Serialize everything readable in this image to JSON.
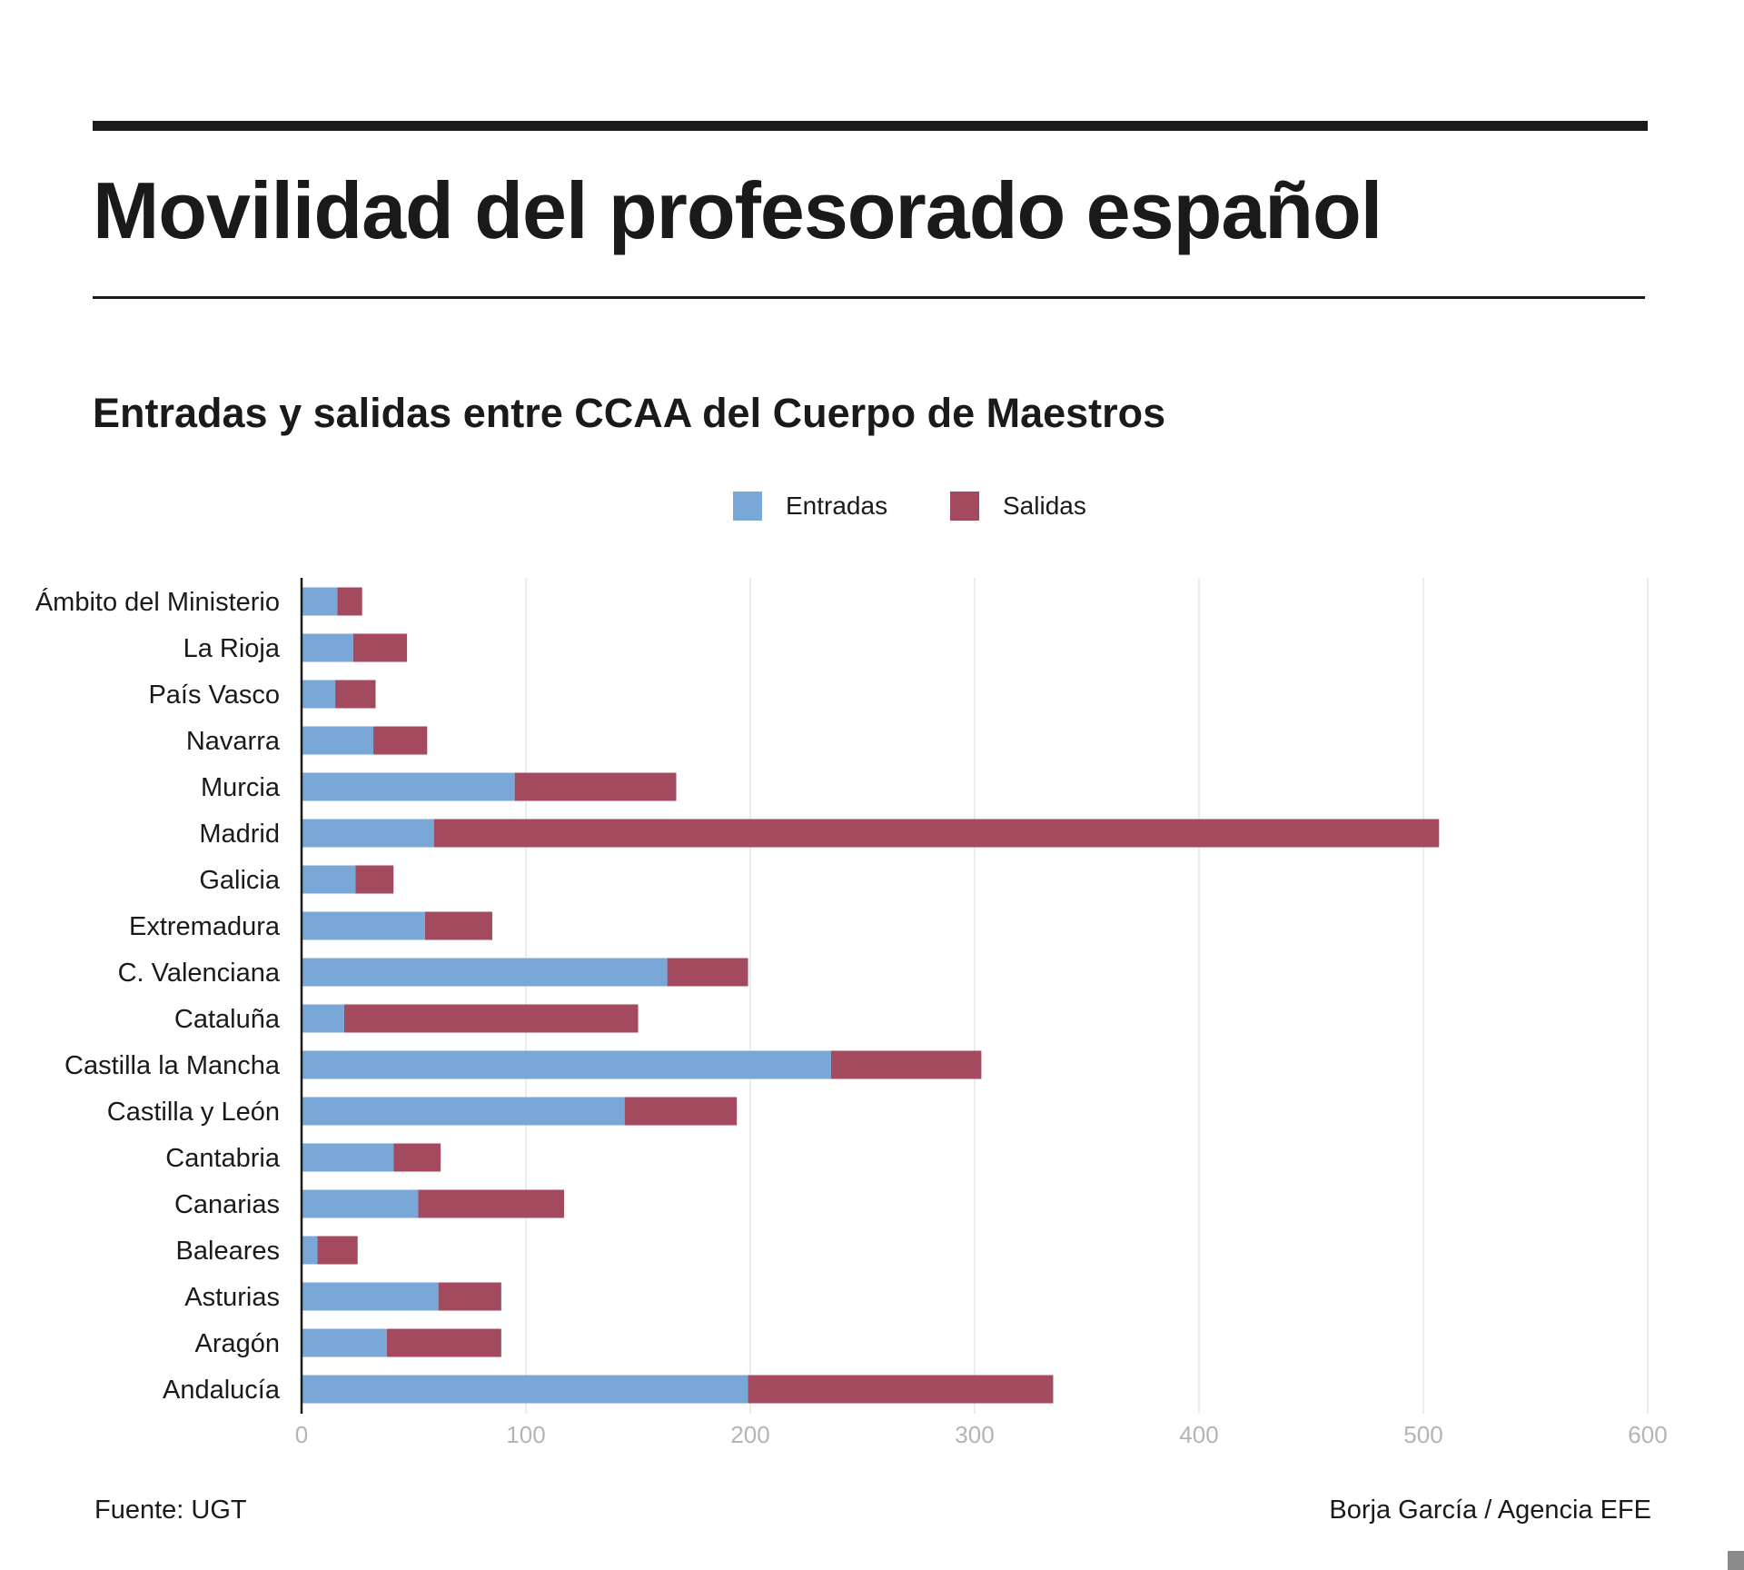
{
  "header": {
    "title": "Movilidad del profesorado español"
  },
  "footer": {
    "source": "Fuente: UGT",
    "credit": "Borja García / Agencia EFE"
  },
  "colors": {
    "entradas": "#78a7d8",
    "salidas": "#a44a5f",
    "axis": "#1a1a1a",
    "grid": "#ececec",
    "tick_label": "#b4b4b4"
  },
  "chart_data": {
    "type": "bar",
    "orientation": "horizontal",
    "stacked": true,
    "title": "Entradas y salidas entre CCAA del Cuerpo de Maestros",
    "xlabel": "",
    "ylabel": "",
    "xlim": [
      0,
      600
    ],
    "xticks": [
      0,
      100,
      200,
      300,
      400,
      500,
      600
    ],
    "grid": "vertical",
    "legend_position": "top-center",
    "categories": [
      "Ámbito del Ministerio",
      "La Rioja",
      "País Vasco",
      "Navarra",
      "Murcia",
      "Madrid",
      "Galicia",
      "Extremadura",
      "C. Valenciana",
      "Cataluña",
      "Castilla la Mancha",
      "Castilla y León",
      "Cantabria",
      "Canarias",
      "Baleares",
      "Asturias",
      "Aragón",
      "Andalucía"
    ],
    "series": [
      {
        "name": "Entradas",
        "color": "#78a7d8",
        "values": [
          16,
          23,
          15,
          32,
          95,
          59,
          24,
          55,
          163,
          19,
          236,
          144,
          41,
          52,
          7,
          61,
          38,
          199
        ]
      },
      {
        "name": "Salidas",
        "color": "#a44a5f",
        "values": [
          11,
          24,
          18,
          24,
          72,
          448,
          17,
          30,
          36,
          131,
          67,
          50,
          21,
          65,
          18,
          28,
          51,
          136
        ]
      }
    ]
  }
}
